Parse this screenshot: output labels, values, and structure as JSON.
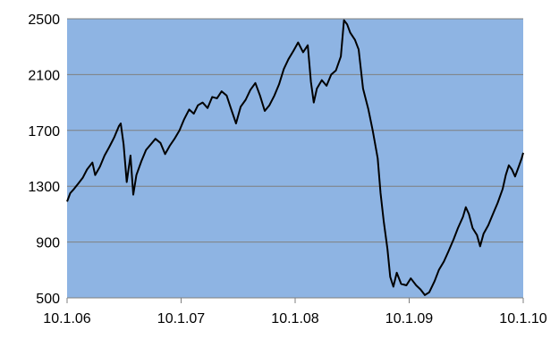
{
  "chart_data": {
    "type": "line",
    "title": "",
    "xlabel": "",
    "ylabel": "",
    "x_ticks": [
      "10.1.06",
      "10.1.07",
      "10.1.08",
      "10.1.09",
      "10.1.10"
    ],
    "y_ticks": [
      500,
      900,
      1300,
      1700,
      2100,
      2500
    ],
    "ylim": [
      500,
      2500
    ],
    "xlim": [
      "2006-01-10",
      "2010-01-10"
    ],
    "grid": "horizontal",
    "plot_background": "#8EB4E3",
    "line_color": "#000000",
    "series": [
      {
        "points": [
          [
            "2006-01-10",
            1190
          ],
          [
            "2006-01-20",
            1250
          ],
          [
            "2006-02-01",
            1280
          ],
          [
            "2006-02-15",
            1320
          ],
          [
            "2006-03-01",
            1360
          ],
          [
            "2006-03-15",
            1420
          ],
          [
            "2006-04-01",
            1470
          ],
          [
            "2006-04-10",
            1380
          ],
          [
            "2006-04-25",
            1440
          ],
          [
            "2006-05-10",
            1520
          ],
          [
            "2006-05-25",
            1580
          ],
          [
            "2006-06-10",
            1650
          ],
          [
            "2006-06-25",
            1730
          ],
          [
            "2006-07-01",
            1750
          ],
          [
            "2006-07-10",
            1600
          ],
          [
            "2006-07-20",
            1330
          ],
          [
            "2006-08-01",
            1520
          ],
          [
            "2006-08-10",
            1240
          ],
          [
            "2006-08-20",
            1380
          ],
          [
            "2006-09-05",
            1480
          ],
          [
            "2006-09-20",
            1560
          ],
          [
            "2006-10-05",
            1600
          ],
          [
            "2006-10-20",
            1640
          ],
          [
            "2006-11-05",
            1610
          ],
          [
            "2006-11-20",
            1530
          ],
          [
            "2006-12-05",
            1590
          ],
          [
            "2006-12-20",
            1640
          ],
          [
            "2007-01-05",
            1700
          ],
          [
            "2007-01-20",
            1780
          ],
          [
            "2007-02-05",
            1850
          ],
          [
            "2007-02-20",
            1820
          ],
          [
            "2007-03-05",
            1880
          ],
          [
            "2007-03-20",
            1900
          ],
          [
            "2007-04-05",
            1860
          ],
          [
            "2007-04-20",
            1940
          ],
          [
            "2007-05-05",
            1930
          ],
          [
            "2007-05-20",
            1980
          ],
          [
            "2007-06-05",
            1950
          ],
          [
            "2007-06-20",
            1850
          ],
          [
            "2007-07-05",
            1750
          ],
          [
            "2007-07-20",
            1870
          ],
          [
            "2007-08-05",
            1920
          ],
          [
            "2007-08-20",
            1990
          ],
          [
            "2007-09-05",
            2040
          ],
          [
            "2007-09-20",
            1950
          ],
          [
            "2007-10-05",
            1840
          ],
          [
            "2007-10-20",
            1880
          ],
          [
            "2007-11-05",
            1950
          ],
          [
            "2007-11-20",
            2030
          ],
          [
            "2007-12-05",
            2140
          ],
          [
            "2007-12-20",
            2210
          ],
          [
            "2008-01-05",
            2270
          ],
          [
            "2008-01-20",
            2330
          ],
          [
            "2008-02-05",
            2260
          ],
          [
            "2008-02-20",
            2310
          ],
          [
            "2008-03-01",
            2050
          ],
          [
            "2008-03-10",
            1900
          ],
          [
            "2008-03-20",
            2000
          ],
          [
            "2008-04-05",
            2060
          ],
          [
            "2008-04-20",
            2020
          ],
          [
            "2008-05-05",
            2100
          ],
          [
            "2008-05-20",
            2130
          ],
          [
            "2008-06-05",
            2230
          ],
          [
            "2008-06-15",
            2490
          ],
          [
            "2008-06-25",
            2460
          ],
          [
            "2008-07-05",
            2400
          ],
          [
            "2008-07-20",
            2350
          ],
          [
            "2008-08-01",
            2280
          ],
          [
            "2008-08-15",
            2000
          ],
          [
            "2008-09-01",
            1850
          ],
          [
            "2008-09-15",
            1700
          ],
          [
            "2008-10-01",
            1500
          ],
          [
            "2008-10-10",
            1250
          ],
          [
            "2008-10-20",
            1050
          ],
          [
            "2008-11-01",
            850
          ],
          [
            "2008-11-10",
            650
          ],
          [
            "2008-11-20",
            580
          ],
          [
            "2008-12-01",
            680
          ],
          [
            "2008-12-15",
            600
          ],
          [
            "2009-01-01",
            590
          ],
          [
            "2009-01-15",
            640
          ],
          [
            "2009-02-01",
            590
          ],
          [
            "2009-02-15",
            560
          ],
          [
            "2009-03-01",
            520
          ],
          [
            "2009-03-15",
            540
          ],
          [
            "2009-04-01",
            620
          ],
          [
            "2009-04-15",
            700
          ],
          [
            "2009-05-01",
            760
          ],
          [
            "2009-05-15",
            830
          ],
          [
            "2009-06-01",
            920
          ],
          [
            "2009-06-15",
            1000
          ],
          [
            "2009-07-01",
            1080
          ],
          [
            "2009-07-10",
            1150
          ],
          [
            "2009-07-20",
            1100
          ],
          [
            "2009-08-01",
            1000
          ],
          [
            "2009-08-15",
            950
          ],
          [
            "2009-08-25",
            870
          ],
          [
            "2009-09-05",
            960
          ],
          [
            "2009-09-20",
            1020
          ],
          [
            "2009-10-05",
            1100
          ],
          [
            "2009-10-20",
            1180
          ],
          [
            "2009-11-05",
            1280
          ],
          [
            "2009-11-15",
            1380
          ],
          [
            "2009-11-25",
            1450
          ],
          [
            "2009-12-05",
            1420
          ],
          [
            "2009-12-15",
            1370
          ],
          [
            "2009-12-25",
            1430
          ],
          [
            "2010-01-05",
            1500
          ],
          [
            "2010-01-10",
            1540
          ]
        ]
      }
    ]
  }
}
